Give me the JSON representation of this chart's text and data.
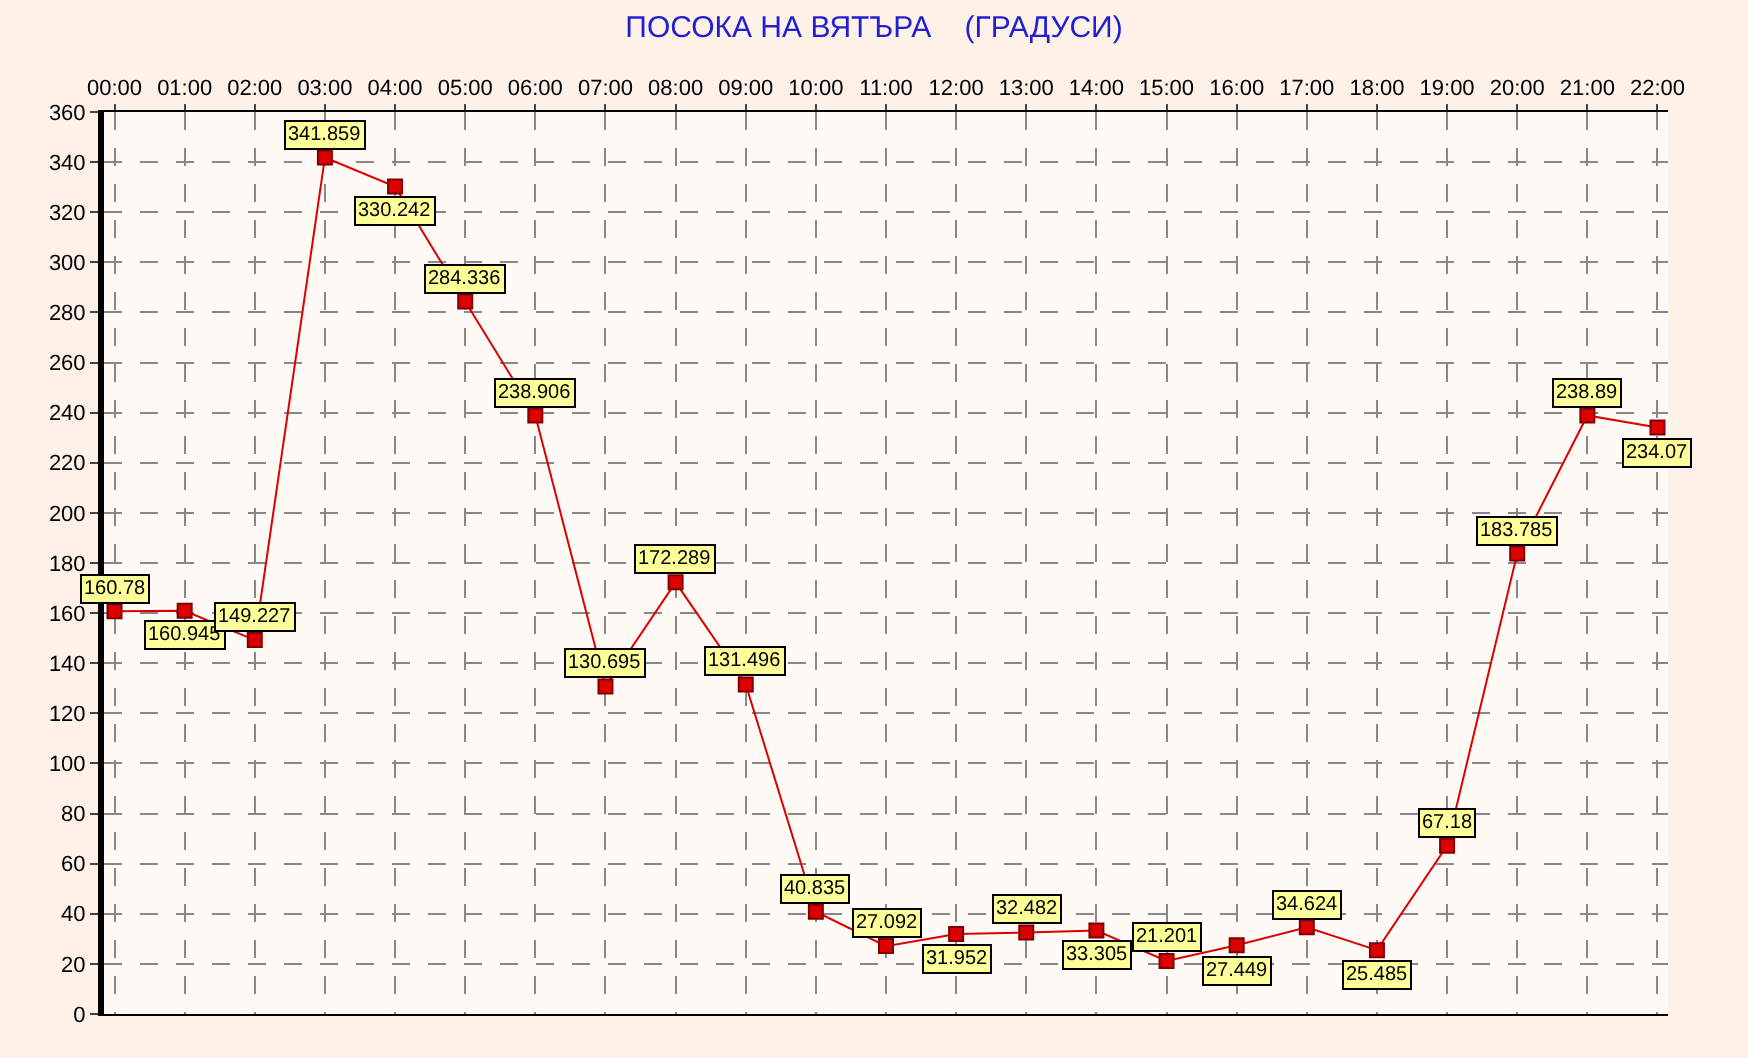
{
  "chart_data": {
    "type": "line",
    "title": "ПОСОКА НА ВЯТЪРА    (ГРАДУСИ)",
    "categories": [
      "00:00",
      "01:00",
      "02:00",
      "03:00",
      "04:00",
      "05:00",
      "06:00",
      "07:00",
      "08:00",
      "09:00",
      "10:00",
      "11:00",
      "12:00",
      "13:00",
      "14:00",
      "15:00",
      "16:00",
      "17:00",
      "18:00",
      "19:00",
      "20:00",
      "21:00",
      "22:00"
    ],
    "series": [
      {
        "color": "#dd0000",
        "values": [
          160.78,
          160.945,
          149.227,
          341.859,
          330.242,
          284.336,
          238.906,
          130.695,
          172.289,
          131.496,
          40.835,
          27.092,
          31.952,
          32.482,
          33.305,
          21.201,
          27.449,
          34.624,
          25.485,
          67.18,
          183.785,
          238.89,
          234.07
        ]
      }
    ],
    "ylim": [
      0,
      360
    ],
    "yticks": [
      0,
      20,
      40,
      60,
      80,
      100,
      120,
      140,
      160,
      180,
      200,
      220,
      240,
      260,
      280,
      300,
      320,
      340,
      360
    ],
    "grid": true,
    "marker": "square",
    "line_style": "solid",
    "data_labels": true,
    "legend": false
  }
}
